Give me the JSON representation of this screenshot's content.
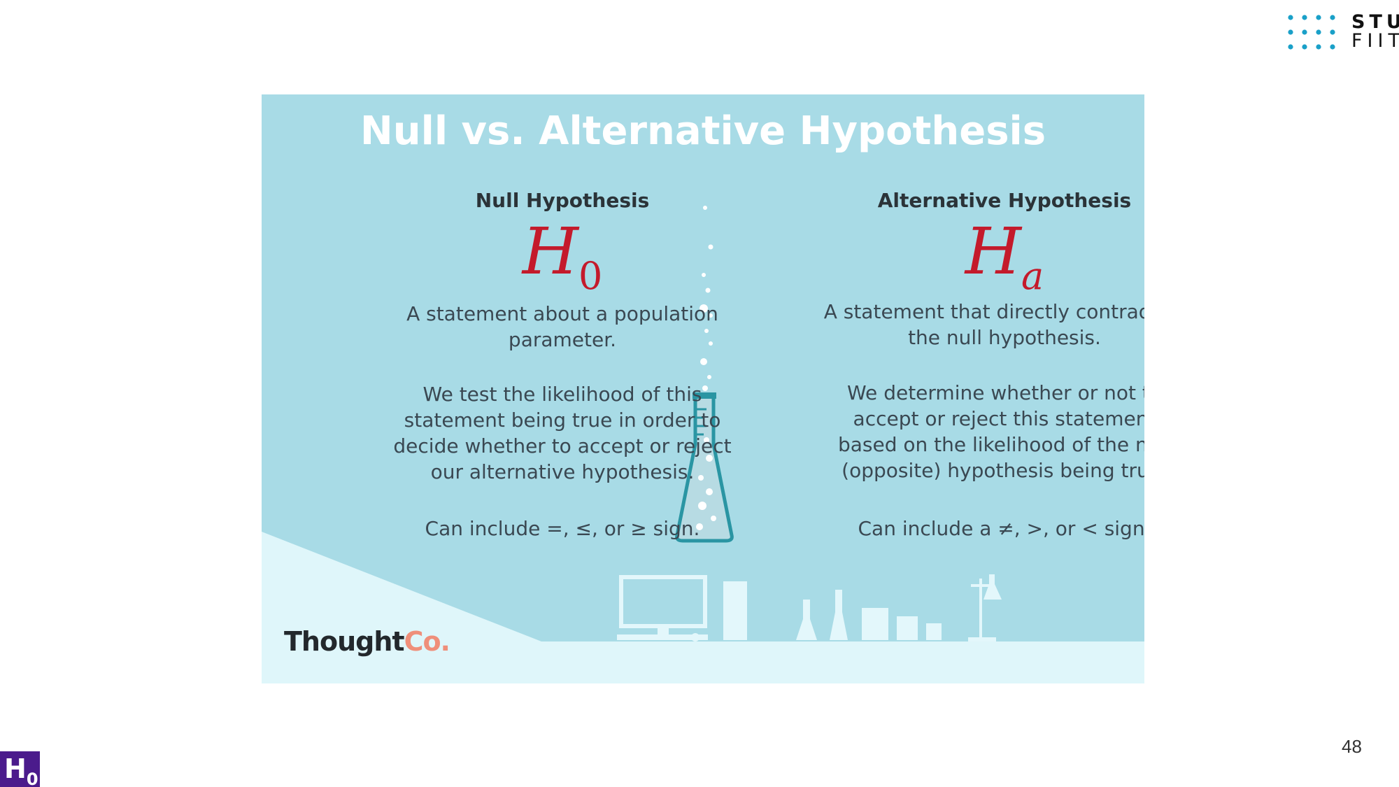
{
  "logo": {
    "line1": "STU",
    "line2": "FIIT",
    "dot_color": "#1aa0c8"
  },
  "card": {
    "title": "Null vs. Alternative Hypothesis",
    "background_color": "#a8dbe6",
    "light_color": "#dff6fa",
    "symbol_color": "#c41a2b",
    "null": {
      "heading": "Null Hypothesis",
      "symbol_main": "H",
      "symbol_sub": "0",
      "p1": "A statement about a population parameter.",
      "p2": "We test the likelihood of this statement being true in order to decide whether to accept or reject our alternative hypothesis.",
      "p3": "Can include =, ≤, or ≥ sign."
    },
    "alternative": {
      "heading": "Alternative Hypothesis",
      "symbol_main": "H",
      "symbol_sub": "a",
      "p1": "A statement that directly contradicts the null hypothesis.",
      "p2": "We determine whether or not to accept or reject this statement based on the likelihood of the null (opposite) hypothesis being true.",
      "p3": "Can include a ≠, >, or < sign."
    },
    "brand": {
      "part1": "Thought",
      "part2": "Co."
    }
  },
  "page_number": "48",
  "badge": {
    "main": "H",
    "sub": "0",
    "color": "#4b1b8c"
  }
}
